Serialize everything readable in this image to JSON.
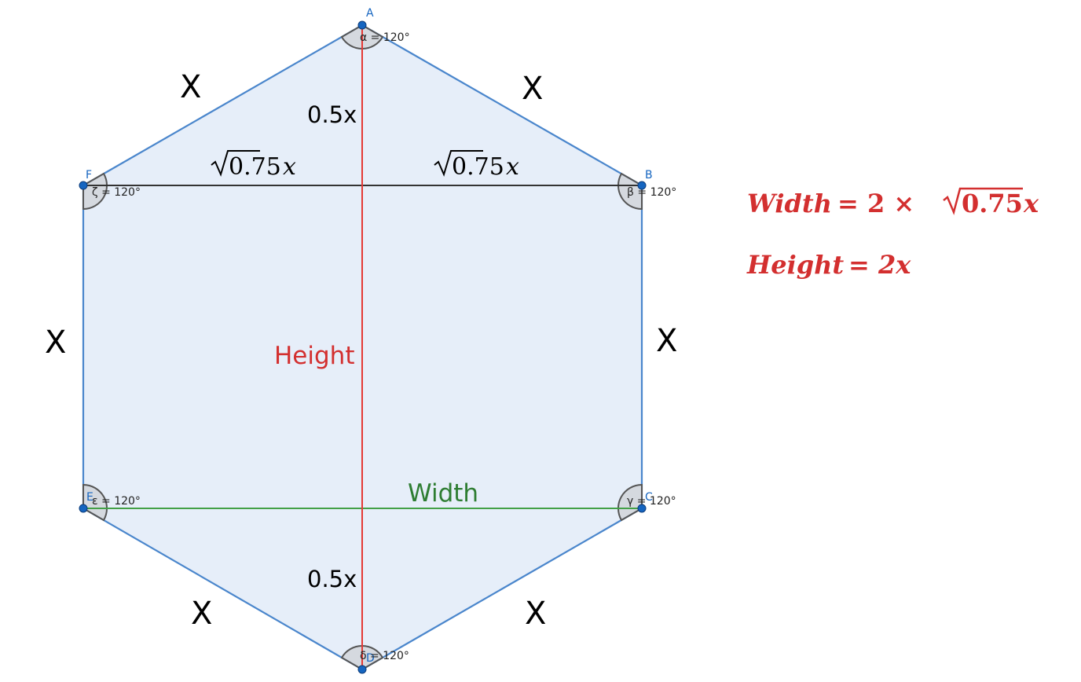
{
  "colors": {
    "hexagon_fill": "#e6eef9",
    "hexagon_stroke": "#4a86cc",
    "vertex": "#1565c0",
    "height_line": "#e53935",
    "width_line": "#43a047",
    "diagonal_line": "#333333",
    "formula": "#d32f2f"
  },
  "vertices": {
    "A": "A",
    "B": "B",
    "C": "C",
    "D": "D",
    "E": "E",
    "F": "F"
  },
  "angles": {
    "A": "α = 120°",
    "B": "β = 120°",
    "C": "γ = 120°",
    "D": "δ = 120°",
    "E": "ε = 120°",
    "F": "ζ = 120°"
  },
  "side_labels": {
    "AF": "X",
    "AB": "X",
    "FE": "X",
    "BC": "X",
    "ED": "X",
    "CD": "X"
  },
  "segment_labels": {
    "top_half": "0.5x",
    "bottom_half": "0.5x",
    "left_root": "0.75",
    "right_root": "0.75",
    "root_var": "x"
  },
  "line_labels": {
    "height": "Height",
    "width": "Width"
  },
  "formulas": {
    "width": {
      "lhs": "Width",
      "op": "= 2 ×",
      "root": "0.75",
      "var": "x"
    },
    "height": {
      "lhs": "Height",
      "rhs": "= 2x"
    }
  }
}
